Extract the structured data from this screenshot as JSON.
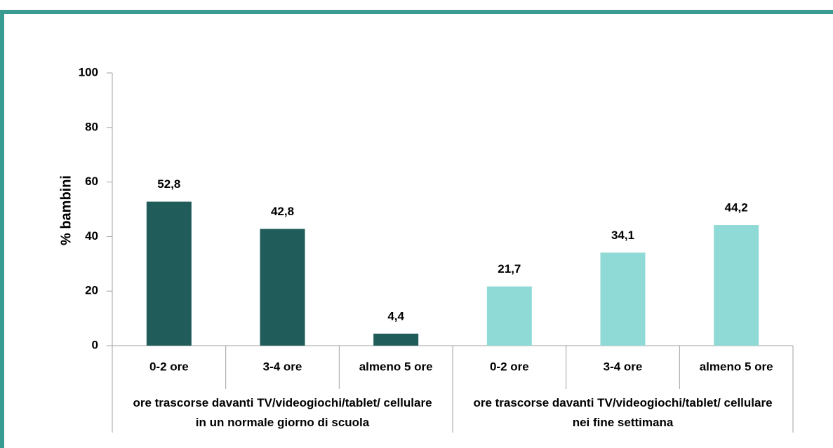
{
  "chart_data": {
    "type": "bar",
    "y_label": "% bambini",
    "categories": [
      "0-2 ore",
      "3-4 ore",
      "almeno 5 ore"
    ],
    "series": [
      {
        "name": "ore trascorse davanti TV/videogiochi/tablet/ cellulare in un normale giorno di scuola",
        "color": "#1f5c5a",
        "values": [
          52.8,
          42.8,
          4.4
        ],
        "value_labels": [
          "52,8",
          "42,8",
          "4,4"
        ]
      },
      {
        "name": "ore trascorse davanti TV/videogiochi/tablet/ cellulare nei fine settimana",
        "color": "#8fdad6",
        "values": [
          21.7,
          34.1,
          44.2
        ],
        "value_labels": [
          "21,7",
          "34,1",
          "44,2"
        ]
      }
    ],
    "ylim": [
      0,
      100
    ],
    "yticks": [
      0,
      20,
      40,
      60,
      80,
      100
    ],
    "grid": false
  }
}
